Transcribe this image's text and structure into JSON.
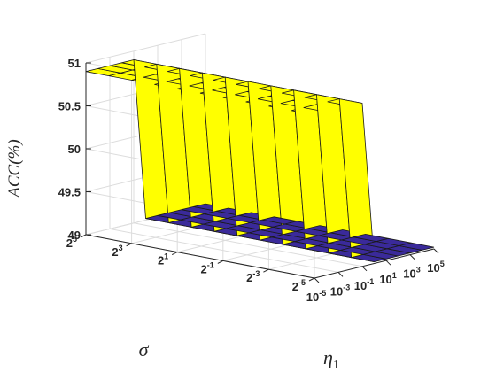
{
  "chart_data": {
    "type": "surface3d",
    "title": "",
    "zlabel": "ACC(%)",
    "xlabel_sym": "η",
    "xlabel_sub": "1",
    "ylabel": "σ",
    "zlim": [
      49,
      51
    ],
    "z_ticks": [
      "49",
      "49.5",
      "50",
      "50.5",
      "51"
    ],
    "x_log2_exponents": [
      -5,
      -4,
      -3,
      -2,
      -1,
      0,
      1,
      2,
      3,
      4,
      5
    ],
    "x_ticks": [
      {
        "base": "10",
        "exp": "-5"
      },
      {
        "base": "10",
        "exp": "-3"
      },
      {
        "base": "10",
        "exp": "-1"
      },
      {
        "base": "10",
        "exp": "1"
      },
      {
        "base": "10",
        "exp": "3"
      },
      {
        "base": "10",
        "exp": "5"
      }
    ],
    "y_log2_exponents": [
      5,
      4,
      3,
      2,
      1,
      0,
      -1,
      -2,
      -3,
      -4,
      -5
    ],
    "y_ticks": [
      {
        "base": "2",
        "exp": "5"
      },
      {
        "base": "2",
        "exp": "3"
      },
      {
        "base": "2",
        "exp": "1"
      },
      {
        "base": "2",
        "exp": "-1"
      },
      {
        "base": "2",
        "exp": "-3"
      },
      {
        "base": "2",
        "exp": "-5"
      }
    ],
    "high_value": 50.9,
    "low_value": 49.02,
    "high_x_count": 5,
    "high_color": "#ffff00",
    "low_color": "#3a2a9a",
    "grid": true,
    "legend": "none"
  }
}
